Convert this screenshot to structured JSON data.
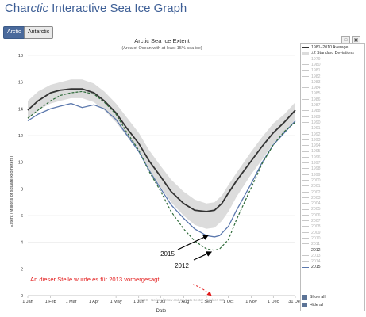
{
  "header": {
    "title_prefix": "Char",
    "title_italic": "ctic",
    "title_suffix": " Interactive Sea Ice Graph"
  },
  "tabs": [
    {
      "label": "Arctic",
      "active": true
    },
    {
      "label": "Antarctic",
      "active": false
    }
  ],
  "toolbar": {
    "save_icon": "save-icon",
    "print_icon": "print-icon"
  },
  "legend": {
    "entries": [
      {
        "label": "1981–2010 Average",
        "style": "avg"
      },
      {
        "label": "±2 Standard Deviations",
        "style": "std"
      },
      {
        "label": "1979",
        "style": "faded"
      },
      {
        "label": "1980",
        "style": "faded"
      },
      {
        "label": "1981",
        "style": "faded"
      },
      {
        "label": "1982",
        "style": "faded"
      },
      {
        "label": "1983",
        "style": "faded"
      },
      {
        "label": "1984",
        "style": "faded"
      },
      {
        "label": "1985",
        "style": "faded"
      },
      {
        "label": "1986",
        "style": "faded"
      },
      {
        "label": "1987",
        "style": "faded"
      },
      {
        "label": "1988",
        "style": "faded"
      },
      {
        "label": "1989",
        "style": "faded"
      },
      {
        "label": "1990",
        "style": "faded"
      },
      {
        "label": "1991",
        "style": "faded"
      },
      {
        "label": "1992",
        "style": "faded"
      },
      {
        "label": "1993",
        "style": "faded"
      },
      {
        "label": "1994",
        "style": "faded"
      },
      {
        "label": "1995",
        "style": "faded"
      },
      {
        "label": "1996",
        "style": "faded"
      },
      {
        "label": "1997",
        "style": "faded"
      },
      {
        "label": "1998",
        "style": "faded"
      },
      {
        "label": "1999",
        "style": "faded"
      },
      {
        "label": "2000",
        "style": "faded"
      },
      {
        "label": "2001",
        "style": "faded"
      },
      {
        "label": "2002",
        "style": "faded"
      },
      {
        "label": "2003",
        "style": "faded"
      },
      {
        "label": "2004",
        "style": "faded"
      },
      {
        "label": "2005",
        "style": "faded"
      },
      {
        "label": "2006",
        "style": "faded"
      },
      {
        "label": "2007",
        "style": "faded"
      },
      {
        "label": "2008",
        "style": "faded"
      },
      {
        "label": "2009",
        "style": "faded"
      },
      {
        "label": "2010",
        "style": "faded"
      },
      {
        "label": "2011",
        "style": "faded"
      },
      {
        "label": "2012",
        "style": "dash"
      },
      {
        "label": "2013",
        "style": "faded"
      },
      {
        "label": "2014",
        "style": "faded"
      },
      {
        "label": "2015",
        "style": "blue"
      }
    ],
    "show_all": "Show all",
    "hide_all": "Hide all"
  },
  "colors": {
    "avg": "#333333",
    "std": "#dcdcdc",
    "y2015": "#5b78ad",
    "y2012": "#2f6b3a",
    "faded": "#c8c8c8",
    "annotation": "#e31b1b",
    "arrow": "#000000"
  },
  "chart_data": {
    "type": "line",
    "title": "Arctic Sea Ice Extent",
    "subtitle": "(Area of Ocean with at least 15% sea ice)",
    "xlabel": "Date",
    "ylabel": "Extent (Millions of square kilometers)",
    "ylim": [
      0,
      18
    ],
    "yticks": [
      0,
      2,
      4,
      6,
      8,
      10,
      12,
      14,
      16,
      18
    ],
    "x_tick_labels": [
      "1 Jan",
      "1 Feb",
      "1 Mar",
      "1 Apr",
      "1 May",
      "1 Jun",
      "1 Jul",
      "1 Aug",
      "1 Sep",
      "1 Oct",
      "1 Nov",
      "1 Dec",
      "31 Dec"
    ],
    "x_tick_days": [
      1,
      32,
      60,
      91,
      121,
      152,
      182,
      213,
      244,
      274,
      305,
      335,
      365
    ],
    "xlim": [
      1,
      365
    ],
    "grid": true,
    "legend_position": "right",
    "std_band": {
      "x": [
        1,
        15,
        32,
        45,
        60,
        75,
        91,
        105,
        121,
        135,
        152,
        166,
        182,
        196,
        213,
        228,
        244,
        255,
        265,
        274,
        285,
        305,
        320,
        335,
        350,
        365
      ],
      "upper": [
        14.6,
        15.3,
        15.8,
        16.0,
        16.2,
        16.2,
        15.9,
        15.3,
        14.4,
        13.4,
        12.2,
        10.9,
        9.7,
        8.7,
        7.8,
        7.2,
        6.9,
        7.0,
        7.5,
        8.3,
        9.2,
        10.8,
        11.9,
        12.9,
        13.6,
        14.5
      ],
      "lower": [
        13.2,
        13.9,
        14.4,
        14.6,
        14.8,
        14.8,
        14.5,
        13.9,
        13.0,
        12.0,
        10.8,
        9.4,
        8.1,
        7.0,
        6.0,
        5.3,
        5.0,
        5.1,
        5.6,
        6.3,
        7.4,
        9.1,
        10.2,
        11.4,
        12.2,
        13.2
      ]
    },
    "series": [
      {
        "name": "1981–2010 Average",
        "style": "avg",
        "x": [
          1,
          15,
          32,
          45,
          60,
          75,
          91,
          105,
          121,
          135,
          152,
          166,
          182,
          196,
          213,
          228,
          244,
          255,
          265,
          274,
          285,
          305,
          320,
          335,
          350,
          365
        ],
        "values": [
          13.9,
          14.6,
          15.2,
          15.4,
          15.5,
          15.5,
          15.2,
          14.6,
          13.7,
          12.6,
          11.4,
          10.1,
          8.9,
          7.8,
          6.9,
          6.4,
          6.3,
          6.4,
          6.9,
          7.7,
          8.6,
          10.1,
          11.2,
          12.2,
          13.0,
          13.9
        ]
      },
      {
        "name": "2015",
        "style": "blue",
        "x": [
          1,
          15,
          32,
          45,
          60,
          75,
          91,
          105,
          121,
          135,
          152,
          166,
          182,
          196,
          213,
          228,
          244,
          255,
          262,
          274,
          285,
          305,
          320,
          335,
          350,
          365
        ],
        "values": [
          13.1,
          13.6,
          14.0,
          14.2,
          14.4,
          14.1,
          14.3,
          14.0,
          13.2,
          12.1,
          10.8,
          9.4,
          8.0,
          6.8,
          5.8,
          5.0,
          4.5,
          4.4,
          4.5,
          5.2,
          6.4,
          8.4,
          10.0,
          11.3,
          12.2,
          13.1
        ]
      },
      {
        "name": "2012",
        "style": "dash",
        "x": [
          1,
          15,
          32,
          45,
          60,
          75,
          91,
          105,
          121,
          135,
          152,
          166,
          182,
          196,
          213,
          228,
          244,
          255,
          262,
          274,
          285,
          305,
          320,
          335,
          350,
          365
        ],
        "values": [
          13.3,
          13.9,
          14.6,
          15.0,
          15.2,
          15.3,
          15.1,
          14.5,
          13.6,
          12.3,
          10.9,
          9.3,
          7.8,
          6.3,
          5.0,
          4.1,
          3.5,
          3.4,
          3.5,
          4.2,
          5.7,
          8.1,
          9.9,
          11.3,
          12.3,
          13.0
        ]
      }
    ],
    "annotations": {
      "label_2015": "2015",
      "label_2012": "2012",
      "note": "An dieser Stelle wurde es für 2013 vorhergesagt",
      "credit": "NSIDC - National Snow and Ice Data Center · Boulder, CO"
    }
  }
}
